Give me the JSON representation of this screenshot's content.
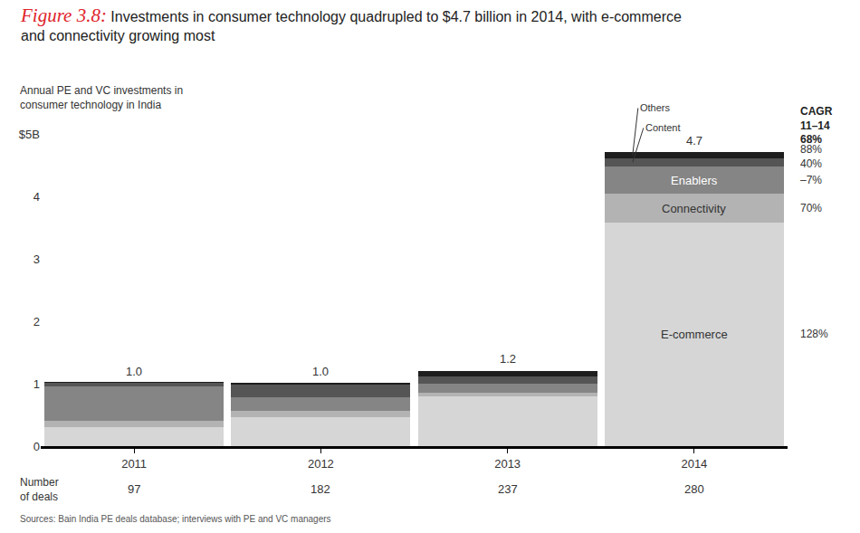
{
  "chart_data": {
    "type": "bar",
    "stacked": true,
    "figure_label": "Figure 3.8:",
    "title": [
      "Investments in consumer technology quadrupled to $4.7 billion in 2014, with e-commerce",
      "and connectivity growing most"
    ],
    "ylabel": [
      "Annual PE and VC investments in",
      "consumer technology in India"
    ],
    "categories": [
      "2011",
      "2012",
      "2013",
      "2014"
    ],
    "series": [
      {
        "name": "E-commerce",
        "color": "#d6d6d6",
        "values": [
          0.31,
          0.46,
          0.8,
          3.58
        ],
        "cagr_label": "128%"
      },
      {
        "name": "Connectivity",
        "color": "#b3b3b3",
        "values": [
          0.1,
          0.1,
          0.05,
          0.46
        ],
        "cagr_label": "70%"
      },
      {
        "name": "Enablers",
        "color": "#858585",
        "values": [
          0.55,
          0.22,
          0.15,
          0.44
        ],
        "cagr_label": "–7%"
      },
      {
        "name": "Content",
        "color": "#555555",
        "values": [
          0.05,
          0.2,
          0.12,
          0.13
        ],
        "cagr_label": "40%"
      },
      {
        "name": "Others",
        "color": "#1e1e1e",
        "values": [
          0.015,
          0.04,
          0.08,
          0.1
        ],
        "cagr_label": "88%"
      }
    ],
    "totals": {
      "values": [
        1.0,
        1.0,
        1.2,
        4.7
      ],
      "value_labels": [
        "1.0",
        "1.0",
        "1.2",
        "4.7"
      ]
    },
    "cagr": {
      "title": "CAGR",
      "period": "11–14",
      "total_label": "68%"
    },
    "deals": {
      "label": [
        "Number",
        "of deals"
      ],
      "values": [
        97,
        182,
        237,
        280
      ]
    },
    "source": "Sources: Bain India PE deals database; interviews with PE and VC managers",
    "ylim": [
      0,
      5
    ],
    "yticks": [
      0,
      1,
      2,
      3,
      4,
      {
        "value": 5,
        "label": "$5B"
      }
    ],
    "grid": false
  }
}
